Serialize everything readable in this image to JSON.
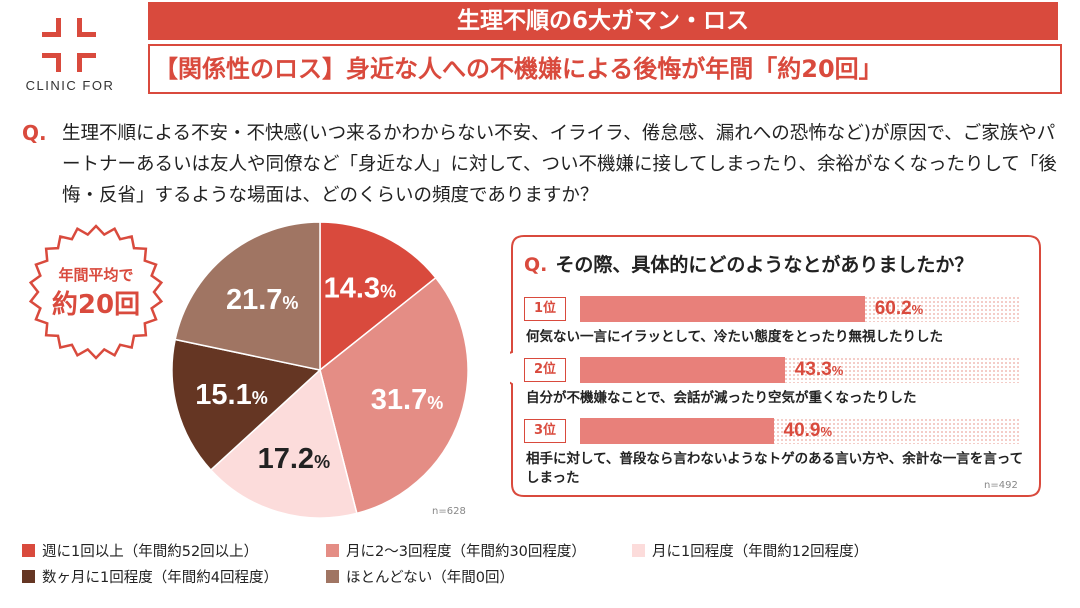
{
  "header": {
    "logo_text": "CLINIC FOR",
    "banner_title": "生理不順の6大ガマン・ロス",
    "subtitle": "【関係性のロス】身近な人への不機嫌による後悔が年間「約20回」"
  },
  "question": {
    "mark": "Q.",
    "text": "生理不順による不安・不快感(いつ来るかわからない不安、イライラ、倦怠感、漏れへの恐怖など)が原因で、ご家族やパートナーあるいは友人や同僚など「身近な人」に対して、つい不機嫌に接してしまったり、余裕がなくなったりして「後悔・反省」するような場面は、どのくらいの頻度でありますか？"
  },
  "badge": {
    "line1": "年間平均で",
    "line2": "約20回"
  },
  "colors": {
    "accent": "#d94a3d",
    "weekly": "#d94a3d",
    "monthly_2_3": "#e48d85",
    "monthly_1": "#fcdcdb",
    "few_months": "#653623",
    "almost_none": "#a07563",
    "bar": "#e8807a"
  },
  "chart_data": [
    {
      "type": "pie",
      "slices": [
        {
          "label": "週に1回以上（年間約52回以上）",
          "value": 14.3,
          "display": "14.3",
          "color": "#d94a3d",
          "text_color": "#ffffff"
        },
        {
          "label": "月に2〜3回程度（年間約30回程度）",
          "value": 31.7,
          "display": "31.7",
          "color": "#e48d85",
          "text_color": "#ffffff"
        },
        {
          "label": "月に1回程度（年間約12回程度）",
          "value": 17.2,
          "display": "17.2",
          "color": "#fcdcdb",
          "text_color": "#222222"
        },
        {
          "label": "数ヶ月に1回程度（年間約4回程度）",
          "value": 15.1,
          "display": "15.1",
          "color": "#653623",
          "text_color": "#ffffff"
        },
        {
          "label": "ほとんどない（年間0回）",
          "value": 21.7,
          "display": "21.7",
          "color": "#a07563",
          "text_color": "#ffffff"
        }
      ],
      "unit": "%",
      "n_label": "n=628",
      "legend_placement": "bottom"
    },
    {
      "type": "bar",
      "title_mark": "Q.",
      "title": "その際、具体的にどのようなとがありましたか？",
      "unit": "%",
      "n_label": "n=492",
      "items": [
        {
          "rank": "1位",
          "value": 60.2,
          "display": "60.2",
          "label": "何気ない一言にイラッとして、冷たい態度をとったり無視したりした"
        },
        {
          "rank": "2位",
          "value": 43.3,
          "display": "43.3",
          "label": "自分が不機嫌なことで、会話が減ったり空気が重くなったりした"
        },
        {
          "rank": "3位",
          "value": 40.9,
          "display": "40.9",
          "label": "相手に対して、普段なら言わないようなトゲのある言い方や、余計な一言を言ってしまった"
        }
      ]
    }
  ]
}
